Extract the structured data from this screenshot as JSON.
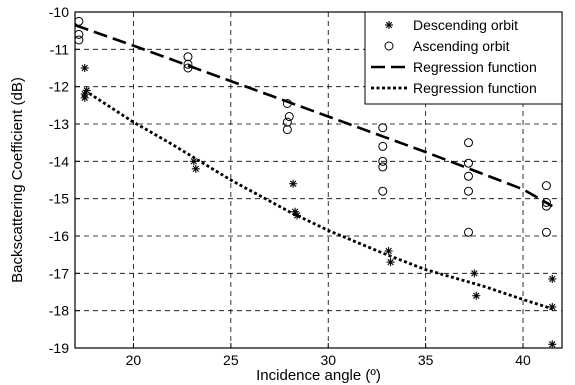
{
  "chart_data": {
    "type": "scatter",
    "xlabel": "Incidence angle (º)",
    "ylabel": "Backscattering Coefficient (dB)",
    "xlim": [
      17,
      42
    ],
    "ylim": [
      -19,
      -10
    ],
    "xticks": [
      20,
      25,
      30,
      35,
      40
    ],
    "yticks": [
      -10,
      -11,
      -12,
      -13,
      -14,
      -15,
      -16,
      -17,
      -18,
      -19
    ],
    "grid": true,
    "legend_position": "top-right",
    "series": [
      {
        "name": "Descending orbit",
        "kind": "scatter",
        "marker": "asterisk",
        "points": [
          [
            17.5,
            -11.5
          ],
          [
            17.5,
            -12.2
          ],
          [
            17.5,
            -12.3
          ],
          [
            17.6,
            -12.1
          ],
          [
            23.1,
            -14.0
          ],
          [
            23.2,
            -14.2
          ],
          [
            28.2,
            -14.6
          ],
          [
            28.3,
            -15.35
          ],
          [
            28.4,
            -15.45
          ],
          [
            33.1,
            -16.4
          ],
          [
            33.2,
            -16.7
          ],
          [
            37.5,
            -17.0
          ],
          [
            37.6,
            -17.6
          ],
          [
            41.5,
            -17.15
          ],
          [
            41.5,
            -17.9
          ],
          [
            41.5,
            -18.9
          ]
        ]
      },
      {
        "name": "Ascending orbit",
        "kind": "scatter",
        "marker": "circle",
        "points": [
          [
            17.2,
            -10.25
          ],
          [
            17.2,
            -10.6
          ],
          [
            17.2,
            -10.75
          ],
          [
            22.8,
            -11.2
          ],
          [
            22.8,
            -11.4
          ],
          [
            22.8,
            -11.5
          ],
          [
            27.9,
            -12.45
          ],
          [
            28.0,
            -12.8
          ],
          [
            27.9,
            -12.95
          ],
          [
            27.9,
            -13.15
          ],
          [
            32.8,
            -13.1
          ],
          [
            32.8,
            -13.6
          ],
          [
            32.8,
            -14.0
          ],
          [
            32.8,
            -14.15
          ],
          [
            32.8,
            -14.8
          ],
          [
            37.2,
            -13.5
          ],
          [
            37.2,
            -14.05
          ],
          [
            37.2,
            -14.4
          ],
          [
            37.2,
            -14.8
          ],
          [
            37.2,
            -15.9
          ],
          [
            41.2,
            -14.65
          ],
          [
            41.2,
            -15.1
          ],
          [
            41.2,
            -15.2
          ],
          [
            41.2,
            -15.9
          ]
        ]
      },
      {
        "name": "Regression function",
        "kind": "line",
        "style": "dashed",
        "points": [
          [
            17,
            -10.35
          ],
          [
            20,
            -10.9
          ],
          [
            25,
            -11.85
          ],
          [
            30,
            -12.8
          ],
          [
            35,
            -13.75
          ],
          [
            40,
            -14.75
          ],
          [
            41.5,
            -15.2
          ]
        ]
      },
      {
        "name": "Regression function",
        "kind": "line",
        "style": "dotted",
        "points": [
          [
            17.5,
            -12.1
          ],
          [
            20,
            -12.95
          ],
          [
            22,
            -13.55
          ],
          [
            25,
            -14.5
          ],
          [
            28,
            -15.35
          ],
          [
            30,
            -15.85
          ],
          [
            33,
            -16.5
          ],
          [
            35,
            -16.9
          ],
          [
            38,
            -17.35
          ],
          [
            40,
            -17.7
          ],
          [
            41.5,
            -17.95
          ]
        ]
      }
    ]
  }
}
